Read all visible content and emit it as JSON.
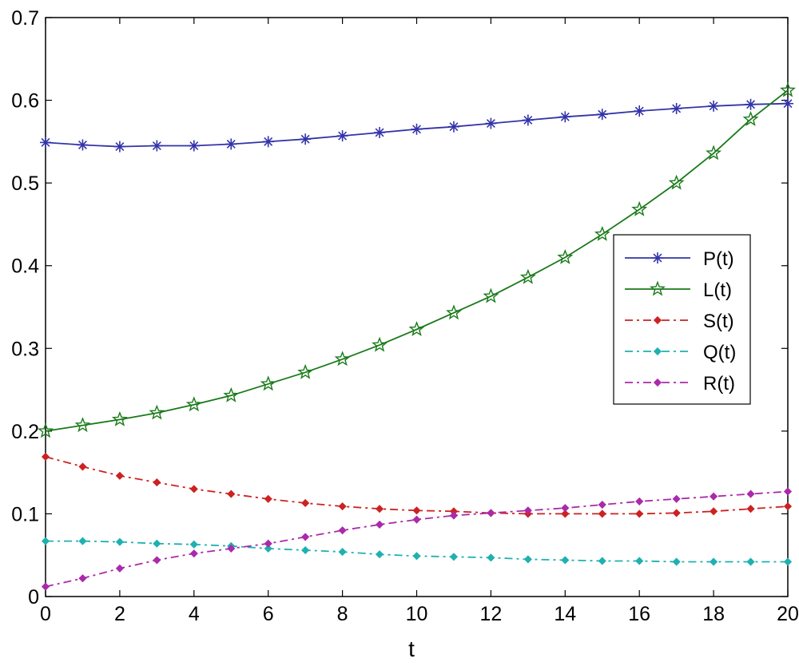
{
  "chart_data": {
    "type": "line",
    "title": "",
    "xlabel": "t",
    "ylabel": "",
    "xlim": [
      0,
      20
    ],
    "ylim": [
      0,
      0.7
    ],
    "grid": false,
    "legend_position": "right",
    "x_ticks": [
      0,
      2,
      4,
      6,
      8,
      10,
      12,
      14,
      16,
      18,
      20
    ],
    "x_tick_labels": [
      "0",
      "2",
      "4",
      "6",
      "8",
      "10",
      "12",
      "14",
      "16",
      "18",
      "20"
    ],
    "y_ticks": [
      0,
      0.1,
      0.2,
      0.3,
      0.4,
      0.5,
      0.6,
      0.7
    ],
    "y_tick_labels": [
      "0",
      "0.1",
      "0.2",
      "0.3",
      "0.4",
      "0.5",
      "0.6",
      "0.7"
    ],
    "x": [
      0,
      1,
      2,
      3,
      4,
      5,
      6,
      7,
      8,
      9,
      10,
      11,
      12,
      13,
      14,
      15,
      16,
      17,
      18,
      19,
      20
    ],
    "series": [
      {
        "name": "P(t)",
        "color": "#3333aa",
        "line_style": "solid",
        "marker": "asterisk",
        "values": [
          0.549,
          0.546,
          0.544,
          0.545,
          0.545,
          0.547,
          0.55,
          0.553,
          0.557,
          0.561,
          0.565,
          0.568,
          0.572,
          0.576,
          0.58,
          0.583,
          0.587,
          0.59,
          0.593,
          0.595,
          0.596
        ]
      },
      {
        "name": "L(t)",
        "color": "#1a7a1a",
        "line_style": "solid",
        "marker": "pentagram",
        "values": [
          0.2,
          0.207,
          0.214,
          0.222,
          0.232,
          0.243,
          0.257,
          0.271,
          0.287,
          0.304,
          0.323,
          0.343,
          0.363,
          0.386,
          0.41,
          0.438,
          0.468,
          0.5,
          0.536,
          0.577,
          0.612
        ]
      },
      {
        "name": "S(t)",
        "color": "#cc2222",
        "line_style": "dash-dot",
        "marker": "dot",
        "values": [
          0.169,
          0.157,
          0.146,
          0.138,
          0.13,
          0.124,
          0.118,
          0.113,
          0.109,
          0.106,
          0.104,
          0.103,
          0.101,
          0.1,
          0.1,
          0.1,
          0.1,
          0.101,
          0.103,
          0.106,
          0.109
        ]
      },
      {
        "name": "Q(t)",
        "color": "#1fb0b0",
        "line_style": "dash-dot",
        "marker": "dot",
        "values": [
          0.067,
          0.067,
          0.066,
          0.064,
          0.063,
          0.061,
          0.058,
          0.056,
          0.054,
          0.051,
          0.049,
          0.048,
          0.047,
          0.045,
          0.044,
          0.043,
          0.043,
          0.042,
          0.042,
          0.042,
          0.042
        ]
      },
      {
        "name": "R(t)",
        "color": "#aa2aaa",
        "line_style": "dash-dot",
        "marker": "dot",
        "values": [
          0.012,
          0.022,
          0.034,
          0.044,
          0.052,
          0.058,
          0.064,
          0.072,
          0.08,
          0.087,
          0.093,
          0.098,
          0.101,
          0.104,
          0.107,
          0.111,
          0.115,
          0.118,
          0.121,
          0.124,
          0.127
        ]
      }
    ]
  }
}
